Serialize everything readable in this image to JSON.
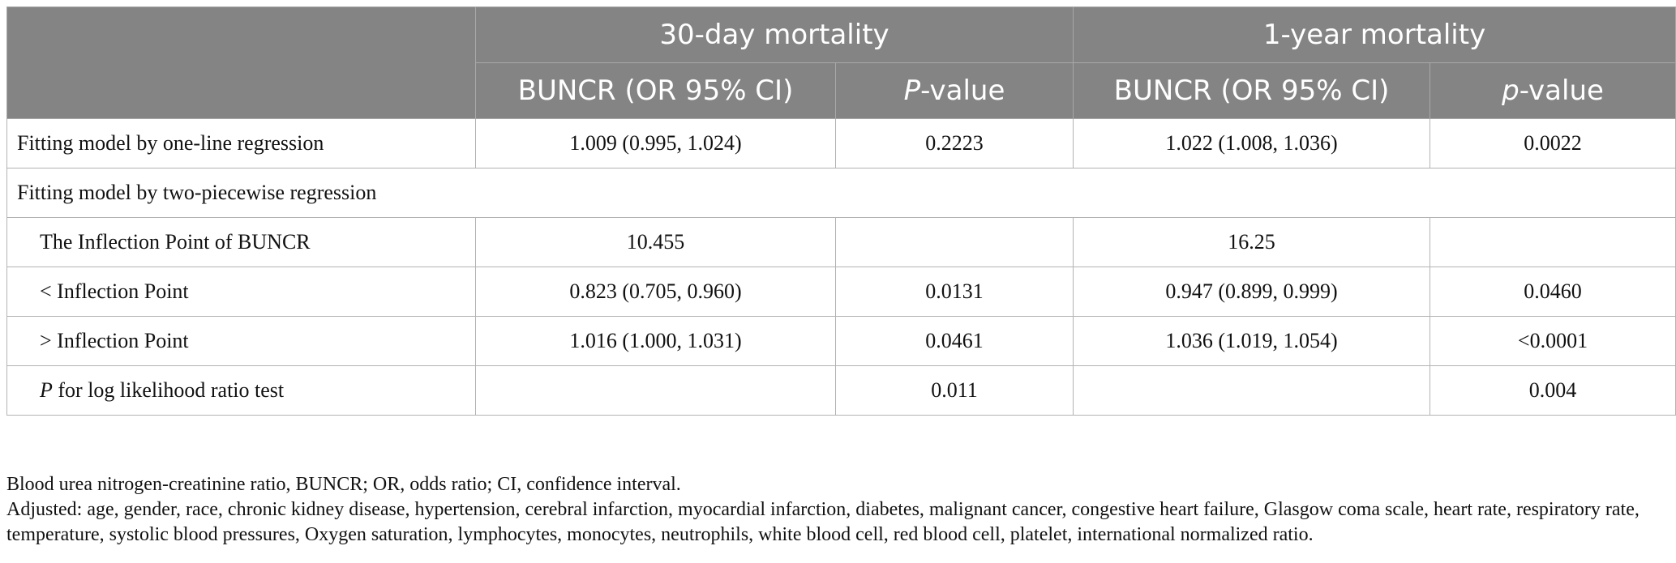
{
  "header": {
    "group1": "30-day mortality",
    "group2": "1-year mortality",
    "col_or_30": "BUNCR (OR 95% CI)",
    "col_p_30_italic": "P",
    "col_p_30_rest": "-value",
    "col_or_1y": "BUNCR (OR 95% CI)",
    "col_p_1y_italic": "p",
    "col_p_1y_rest": "-value"
  },
  "rows": {
    "r1": {
      "label": "Fitting model by one-line regression",
      "or30": "1.009 (0.995, 1.024)",
      "p30": "0.2223",
      "or1y": "1.022 (1.008, 1.036)",
      "p1y": "0.0022"
    },
    "r2": {
      "label": "Fitting model by two-piecewise regression"
    },
    "r3": {
      "label": "The Inflection Point of BUNCR",
      "or30": "10.455",
      "p30": "",
      "or1y": "16.25",
      "p1y": ""
    },
    "r4": {
      "label": "< Inflection Point",
      "or30": "0.823 (0.705, 0.960)",
      "p30": "0.0131",
      "or1y": "0.947 (0.899, 0.999)",
      "p1y": "0.0460"
    },
    "r5": {
      "label": "> Inflection Point",
      "or30": "1.016 (1.000, 1.031)",
      "p30": "0.0461",
      "or1y": "1.036 (1.019, 1.054)",
      "p1y": "<0.0001"
    },
    "r6": {
      "label_italic": "P",
      "label_rest": " for log likelihood ratio test",
      "or30": "",
      "p30": "0.011",
      "or1y": "",
      "p1y": "0.004"
    }
  },
  "footnotes": {
    "abbrev": "Blood urea nitrogen-creatinine ratio, BUNCR; OR, odds ratio; CI, confidence interval.",
    "adjusted": "Adjusted: age, gender, race, chronic kidney disease, hypertension, cerebral infarction, myocardial infarction, diabetes, malignant cancer, congestive heart failure, Glasgow coma scale, heart rate, respiratory rate, temperature, systolic blood pressures, Oxygen saturation, lymphocytes, monocytes, neutrophils, white blood cell, red blood cell, platelet, international normalized ratio."
  },
  "colors": {
    "header_bg": "#848484",
    "header_text": "#ffffff",
    "border": "#b3b3b3"
  }
}
